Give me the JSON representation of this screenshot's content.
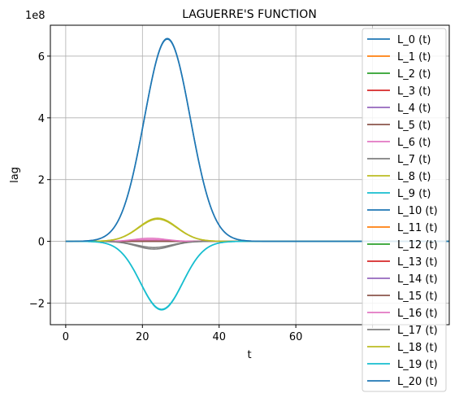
{
  "chart_data": {
    "type": "line",
    "title": "LAGUERRE'S FUNCTION",
    "xlabel": "t",
    "ylabel": "lag",
    "y_scale_note": "1e8",
    "xlim": [
      -4,
      100
    ],
    "ylim": [
      -2.7,
      7.0
    ],
    "x_ticks": [
      0,
      20,
      40,
      60,
      80
    ],
    "x_tick_labels": [
      "0",
      "20",
      "40",
      "60",
      ""
    ],
    "y_ticks": [
      -2,
      0,
      2,
      4,
      6
    ],
    "y_tick_labels": [
      "−2",
      "0",
      "2",
      "4",
      "6"
    ],
    "grid": true,
    "legend_position": "right",
    "x_range": [
      0,
      100
    ],
    "series": [
      {
        "name": "L_0 (t)",
        "color": "#1f77b4",
        "peak": {
          "t": 0,
          "amp": 0,
          "width": 1
        }
      },
      {
        "name": "L_1 (t)",
        "color": "#ff7f0e",
        "peak": {
          "t": 0,
          "amp": 0,
          "width": 1
        }
      },
      {
        "name": "L_2 (t)",
        "color": "#2ca02c",
        "peak": {
          "t": 0,
          "amp": 0,
          "width": 1
        }
      },
      {
        "name": "L_3 (t)",
        "color": "#d62728",
        "peak": {
          "t": 0,
          "amp": 0,
          "width": 1
        }
      },
      {
        "name": "L_4 (t)",
        "color": "#9467bd",
        "peak": {
          "t": 0,
          "amp": 0,
          "width": 1
        }
      },
      {
        "name": "L_5 (t)",
        "color": "#8c564b",
        "peak": {
          "t": 0,
          "amp": 0,
          "width": 1
        }
      },
      {
        "name": "L_6 (t)",
        "color": "#e377c2",
        "peak": {
          "t": 22,
          "amp": 0.05,
          "width": 4
        }
      },
      {
        "name": "L_7 (t)",
        "color": "#7f7f7f",
        "peak": {
          "t": 23,
          "amp": -0.2,
          "width": 4.5
        }
      },
      {
        "name": "L_8 (t)",
        "color": "#bcbd22",
        "peak": {
          "t": 24,
          "amp": 0.75,
          "width": 5
        }
      },
      {
        "name": "L_9 (t)",
        "color": "#17becf",
        "peak": {
          "t": 25,
          "amp": -2.2,
          "width": 5.5
        }
      },
      {
        "name": "L_10 (t)",
        "color": "#1f77b4",
        "peak": {
          "t": 26.5,
          "amp": 6.55,
          "width": 6
        }
      },
      {
        "name": "L_11 (t)",
        "color": "#ff7f0e",
        "peak": {
          "t": 0,
          "amp": 0,
          "width": 1
        }
      },
      {
        "name": "L_12 (t)",
        "color": "#2ca02c",
        "peak": {
          "t": 0,
          "amp": 0,
          "width": 1
        }
      },
      {
        "name": "L_13 (t)",
        "color": "#d62728",
        "peak": {
          "t": 0,
          "amp": 0,
          "width": 1
        }
      },
      {
        "name": "L_14 (t)",
        "color": "#9467bd",
        "peak": {
          "t": 0,
          "amp": 0,
          "width": 1
        }
      },
      {
        "name": "L_15 (t)",
        "color": "#8c564b",
        "peak": {
          "t": 0,
          "amp": 0,
          "width": 1
        }
      },
      {
        "name": "L_16 (t)",
        "color": "#e377c2",
        "peak": {
          "t": 22,
          "amp": 0.1,
          "width": 4
        }
      },
      {
        "name": "L_17 (t)",
        "color": "#7f7f7f",
        "peak": {
          "t": 23,
          "amp": -0.25,
          "width": 4.5
        }
      },
      {
        "name": "L_18 (t)",
        "color": "#bcbd22",
        "peak": {
          "t": 24,
          "amp": 0.72,
          "width": 5
        }
      },
      {
        "name": "L_19 (t)",
        "color": "#17becf",
        "peak": {
          "t": 25,
          "amp": -2.22,
          "width": 5.5
        }
      },
      {
        "name": "L_20 (t)",
        "color": "#1f77b4",
        "peak": {
          "t": 26.5,
          "amp": 6.57,
          "width": 6
        }
      }
    ]
  }
}
